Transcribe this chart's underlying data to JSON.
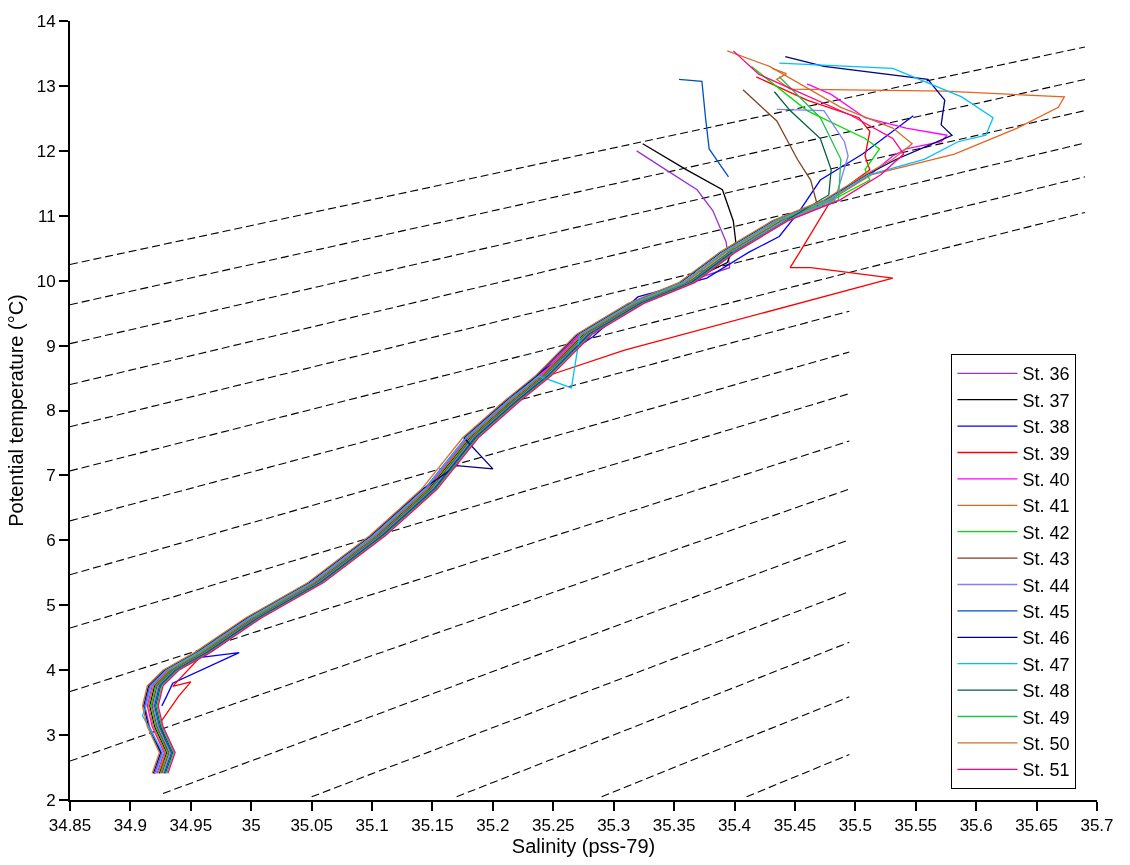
{
  "chart_data": {
    "type": "line",
    "xlabel": "Salinity (pss-79)",
    "ylabel": "Potential temperature (°C)",
    "xlim": [
      34.85,
      35.7
    ],
    "ylim": [
      2,
      14
    ],
    "xticks": [
      34.85,
      34.9,
      34.95,
      35,
      35.05,
      35.1,
      35.15,
      35.2,
      35.25,
      35.3,
      35.35,
      35.4,
      35.45,
      35.5,
      35.55,
      35.6,
      35.65,
      35.7
    ],
    "yticks": [
      2,
      3,
      4,
      5,
      6,
      7,
      8,
      9,
      10,
      11,
      12,
      13,
      14
    ],
    "legend": "bottom right",
    "line_style": "solid",
    "marker": "none",
    "series": [
      {
        "color": "#000000",
        "line_style": "dashed",
        "x": [
          34.85,
          35.69
        ],
        "values": [
          10.25,
          13.6
        ]
      },
      {
        "color": "#000000",
        "line_style": "dashed",
        "x": [
          34.85,
          35.69
        ],
        "values": [
          9.63,
          13.1
        ]
      },
      {
        "color": "#000000",
        "line_style": "dashed",
        "x": [
          34.85,
          35.69
        ],
        "values": [
          9.03,
          12.62
        ]
      },
      {
        "color": "#000000",
        "line_style": "dashed",
        "x": [
          34.85,
          35.69
        ],
        "values": [
          8.4,
          12.12
        ]
      },
      {
        "color": "#000000",
        "line_style": "dashed",
        "x": [
          34.85,
          35.69
        ],
        "values": [
          7.75,
          11.6
        ]
      },
      {
        "color": "#000000",
        "line_style": "dashed",
        "x": [
          34.85,
          35.69
        ],
        "values": [
          7.07,
          11.05
        ]
      },
      {
        "color": "#000000",
        "line_style": "dashed",
        "x": [
          34.85,
          35.495
        ],
        "values": [
          6.3,
          9.53
        ]
      },
      {
        "color": "#000000",
        "line_style": "dashed",
        "x": [
          34.85,
          35.495
        ],
        "values": [
          5.47,
          8.9
        ]
      },
      {
        "color": "#000000",
        "line_style": "dashed",
        "x": [
          34.85,
          35.495
        ],
        "values": [
          4.65,
          8.26
        ]
      },
      {
        "color": "#000000",
        "line_style": "dashed",
        "x": [
          34.85,
          35.495
        ],
        "values": [
          3.67,
          7.53
        ]
      },
      {
        "color": "#000000",
        "line_style": "dashed",
        "x": [
          34.85,
          35.495
        ],
        "values": [
          2.6,
          6.79
        ]
      },
      {
        "color": "#000000",
        "line_style": "dashed",
        "x": [
          34.927,
          35.495
        ],
        "values": [
          2.1,
          6.01
        ]
      },
      {
        "color": "#000000",
        "line_style": "dashed",
        "x": [
          35.05,
          35.495
        ],
        "values": [
          2.05,
          5.21
        ]
      },
      {
        "color": "#000000",
        "line_style": "dashed",
        "x": [
          35.17,
          35.495
        ],
        "values": [
          2.05,
          4.43
        ]
      },
      {
        "color": "#000000",
        "line_style": "dashed",
        "x": [
          35.29,
          35.495
        ],
        "values": [
          2.05,
          3.59
        ]
      },
      {
        "color": "#000000",
        "line_style": "dashed",
        "x": [
          35.41,
          35.495
        ],
        "values": [
          2.05,
          2.7
        ]
      },
      {
        "name": "St. 36",
        "color": "#9933cc",
        "x": [
          34.92,
          34.926,
          34.916,
          34.912,
          34.916,
          34.929,
          34.955,
          34.997,
          35.049,
          35.1,
          35.143,
          35.177,
          35.211,
          35.237,
          35.271,
          35.314,
          35.356,
          35.396,
          35.393,
          35.382,
          35.369,
          35.343,
          35.319
        ],
        "values": [
          2.4,
          2.72,
          3.12,
          3.44,
          3.75,
          3.99,
          4.26,
          4.79,
          5.34,
          6.06,
          6.78,
          7.57,
          8.13,
          8.52,
          9.16,
          9.64,
          9.96,
          10.2,
          10.6,
          11.08,
          11.4,
          11.71,
          12.0
        ]
      },
      {
        "name": "St. 37",
        "color": "#000000",
        "x": [
          34.924,
          34.93,
          34.92,
          34.916,
          34.92,
          34.933,
          34.959,
          35.001,
          35.053,
          35.104,
          35.147,
          35.181,
          35.215,
          35.241,
          35.275,
          35.318,
          35.36,
          35.394,
          35.401,
          35.399,
          35.39,
          35.36,
          35.324
        ],
        "values": [
          2.41,
          2.73,
          3.13,
          3.45,
          3.76,
          4.0,
          4.27,
          4.8,
          5.35,
          6.07,
          6.79,
          7.58,
          8.14,
          8.53,
          9.17,
          9.65,
          9.97,
          10.28,
          10.6,
          10.92,
          11.4,
          11.71,
          12.11
        ]
      },
      {
        "name": "St. 38",
        "color": "#0000ff",
        "x": [
          34.926,
          34.93,
          34.935,
          34.99,
          34.96,
          35.0,
          35.052,
          35.103,
          35.146,
          35.18,
          35.214,
          35.24,
          35.283,
          35.32,
          35.377,
          35.412,
          35.437,
          35.454,
          35.471,
          35.506,
          35.548
        ],
        "values": [
          3.45,
          3.6,
          3.8,
          4.27,
          4.2,
          4.78,
          5.34,
          6.06,
          6.8,
          7.6,
          8.16,
          8.6,
          9.14,
          9.75,
          10.04,
          10.44,
          10.68,
          11.08,
          11.55,
          11.95,
          12.54
        ]
      },
      {
        "name": "St. 39",
        "color": "#ff0000",
        "x": [
          34.925,
          34.93,
          34.925,
          34.94,
          34.95,
          34.935,
          34.96,
          35.003,
          35.055,
          35.106,
          35.15,
          35.183,
          35.217,
          35.243,
          35.309,
          35.531,
          35.463,
          35.446,
          35.454,
          35.48,
          35.497,
          35.512,
          35.508,
          35.512,
          35.503,
          35.46,
          35.418
        ],
        "values": [
          2.42,
          2.8,
          3.2,
          3.6,
          3.82,
          3.75,
          4.25,
          4.78,
          5.33,
          6.05,
          6.75,
          7.55,
          8.12,
          8.52,
          8.93,
          10.04,
          10.2,
          10.2,
          10.44,
          11.24,
          11.51,
          11.71,
          11.92,
          12.3,
          12.51,
          12.78,
          13.14
        ]
      },
      {
        "name": "St. 40",
        "color": "#ff00ff",
        "x": [
          34.922,
          34.928,
          34.918,
          34.914,
          34.918,
          34.931,
          34.957,
          34.999,
          35.051,
          35.102,
          35.145,
          35.179,
          35.213,
          35.239,
          35.273,
          35.316,
          35.358,
          35.392,
          35.435,
          35.478,
          35.512,
          35.531,
          35.542,
          35.571,
          35.576,
          35.542,
          35.508,
          35.48,
          35.46
        ],
        "values": [
          2.41,
          2.73,
          3.13,
          3.45,
          3.76,
          4.0,
          4.27,
          4.8,
          5.35,
          6.07,
          6.79,
          7.58,
          8.14,
          8.53,
          9.17,
          9.65,
          9.97,
          10.44,
          10.92,
          11.24,
          11.63,
          11.92,
          12.03,
          12.14,
          12.24,
          12.35,
          12.51,
          12.87,
          13.03
        ]
      },
      {
        "name": "St. 41",
        "color": "#e8641e",
        "x": [
          34.923,
          34.929,
          34.919,
          34.915,
          34.919,
          34.932,
          34.958,
          35,
          35.052,
          35.103,
          35.146,
          35.18,
          35.214,
          35.24,
          35.274,
          35.317,
          35.359,
          35.393,
          35.436,
          35.479,
          35.513,
          35.582,
          35.634,
          35.668,
          35.673,
          35.574,
          35.446,
          35.435,
          35.443,
          35.431
        ],
        "values": [
          2.41,
          2.73,
          3.13,
          3.45,
          3.76,
          4.0,
          4.27,
          4.8,
          5.35,
          6.07,
          6.79,
          7.58,
          8.14,
          8.53,
          9.17,
          9.65,
          9.97,
          10.44,
          10.92,
          11.24,
          11.63,
          11.95,
          12.35,
          12.67,
          12.83,
          12.92,
          12.95,
          13.1,
          13.19,
          13.27
        ]
      },
      {
        "name": "St. 42",
        "color": "#00e000",
        "x": [
          34.925,
          34.931,
          34.921,
          34.917,
          34.921,
          34.934,
          34.96,
          35.002,
          35.054,
          35.105,
          35.148,
          35.182,
          35.216,
          35.242,
          35.276,
          35.319,
          35.361,
          35.395,
          35.438,
          35.481,
          35.512,
          35.508,
          35.52,
          35.508,
          35.46,
          35.414
        ],
        "values": [
          2.41,
          2.73,
          3.13,
          3.45,
          3.76,
          4.0,
          4.27,
          4.8,
          5.35,
          6.07,
          6.79,
          7.58,
          8.14,
          8.53,
          9.17,
          9.65,
          9.97,
          10.44,
          10.92,
          11.24,
          11.55,
          11.71,
          12.03,
          12.19,
          12.62,
          13.3
        ]
      },
      {
        "name": "St. 43",
        "color": "#804020",
        "x": [
          34.926,
          34.932,
          34.922,
          34.918,
          34.922,
          34.935,
          34.961,
          35.003,
          35.055,
          35.106,
          35.149,
          35.183,
          35.217,
          35.243,
          35.277,
          35.32,
          35.362,
          35.396,
          35.439,
          35.469,
          35.463,
          35.452,
          35.435,
          35.407
        ],
        "values": [
          2.41,
          2.73,
          3.13,
          3.45,
          3.76,
          4.0,
          4.27,
          4.8,
          5.35,
          6.07,
          6.79,
          7.58,
          8.14,
          8.53,
          9.17,
          9.65,
          9.97,
          10.44,
          10.92,
          11.13,
          11.55,
          11.87,
          12.46,
          12.94
        ]
      },
      {
        "name": "St. 44",
        "color": "#8080ff",
        "x": [
          34.927,
          34.933,
          34.923,
          34.919,
          34.923,
          34.936,
          34.962,
          35.004,
          35.056,
          35.107,
          35.15,
          35.184,
          35.218,
          35.244,
          35.278,
          35.321,
          35.363,
          35.397,
          35.44,
          35.483,
          35.494,
          35.491,
          35.474,
          35.435
        ],
        "values": [
          2.41,
          2.73,
          3.13,
          3.45,
          3.76,
          4.0,
          4.27,
          4.8,
          5.35,
          6.07,
          6.79,
          7.58,
          8.14,
          8.53,
          9.17,
          9.65,
          9.97,
          10.44,
          10.92,
          11.24,
          11.92,
          12.14,
          12.62,
          12.64
        ]
      },
      {
        "name": "St. 45",
        "color": "#0050c0",
        "x": [
          34.928,
          34.934,
          34.924,
          34.92,
          34.924,
          34.937,
          34.963,
          35.005,
          35.057,
          35.108,
          35.151,
          35.185,
          35.219,
          35.245,
          35.279,
          35.322,
          35.364,
          35.398,
          null,
          35.395,
          35.379,
          35.376,
          35.373,
          35.354
        ],
        "values": [
          2.41,
          2.73,
          3.13,
          3.45,
          3.76,
          4.0,
          4.27,
          4.8,
          5.35,
          6.07,
          6.79,
          7.58,
          8.14,
          8.53,
          9.17,
          9.65,
          9.97,
          10.44,
          null,
          11.6,
          12.03,
          12.51,
          13.07,
          13.1
        ]
      },
      {
        "name": "St. 46",
        "color": "#000080",
        "x": [
          34.919,
          34.925,
          34.915,
          34.911,
          34.915,
          34.928,
          34.954,
          34.996,
          35.048,
          35.099,
          35.142,
          35.17,
          35.2,
          35.176,
          35.21,
          35.236,
          35.27,
          35.313,
          35.355,
          35.389,
          35.432,
          35.475,
          35.509,
          35.534,
          35.554,
          35.58,
          35.571,
          35.574,
          35.56,
          35.474,
          35.442
        ],
        "values": [
          2.41,
          2.73,
          3.13,
          3.45,
          3.76,
          4.0,
          4.27,
          4.8,
          5.35,
          6.07,
          6.79,
          7.15,
          7.1,
          7.58,
          8.14,
          8.53,
          9.17,
          9.65,
          9.97,
          10.44,
          10.92,
          11.24,
          11.63,
          11.87,
          12.03,
          12.24,
          12.4,
          12.78,
          13.1,
          13.3,
          13.45
        ]
      },
      {
        "name": "St. 47",
        "color": "#00c0ff",
        "x": [
          34.921,
          34.927,
          34.91,
          34.913,
          34.917,
          34.93,
          34.956,
          34.998,
          35.05,
          35.101,
          35.144,
          35.178,
          35.212,
          35.238,
          35.265,
          35.272,
          35.315,
          35.357,
          35.391,
          35.434,
          35.477,
          35.511,
          35.557,
          35.585,
          35.608,
          35.614,
          35.588,
          35.531,
          35.437
        ],
        "values": [
          2.41,
          2.73,
          3.3,
          3.45,
          3.76,
          4.0,
          4.27,
          4.8,
          5.35,
          6.07,
          6.79,
          7.58,
          8.14,
          8.53,
          8.35,
          9.17,
          9.65,
          9.97,
          10.44,
          10.92,
          11.24,
          11.63,
          11.87,
          12.14,
          12.24,
          12.51,
          12.83,
          13.27,
          13.35
        ]
      },
      {
        "name": "St. 48",
        "color": "#006040",
        "x": [
          34.929,
          34.935,
          34.925,
          34.921,
          34.925,
          34.938,
          34.964,
          35.006,
          35.058,
          35.109,
          35.152,
          35.186,
          35.22,
          35.246,
          35.28,
          35.323,
          35.365,
          35.399,
          35.442,
          35.478,
          35.48,
          35.471,
          35.446,
          35.433
        ],
        "values": [
          2.41,
          2.73,
          3.13,
          3.45,
          3.76,
          4.0,
          4.27,
          4.8,
          5.35,
          6.07,
          6.79,
          7.58,
          8.14,
          8.53,
          9.17,
          9.65,
          9.97,
          10.44,
          10.92,
          11.32,
          11.71,
          12.19,
          12.62,
          12.91
        ]
      },
      {
        "name": "St. 49",
        "color": "#20c050",
        "x": [
          34.93,
          34.936,
          34.926,
          34.922,
          34.926,
          34.939,
          34.965,
          35.007,
          35.059,
          35.11,
          35.153,
          35.187,
          35.221,
          35.247,
          35.281,
          35.324,
          35.366,
          35.4,
          35.443,
          35.486,
          35.488,
          35.471,
          35.437
        ],
        "values": [
          2.41,
          2.73,
          3.13,
          3.45,
          3.76,
          4.0,
          4.27,
          4.8,
          5.35,
          6.07,
          6.79,
          7.58,
          8.14,
          8.53,
          9.17,
          9.65,
          9.97,
          10.44,
          10.92,
          11.24,
          11.87,
          12.51,
          13.14
        ]
      },
      {
        "name": "St. 50",
        "color": "#d0702a",
        "x": [
          34.918,
          34.924,
          34.914,
          34.91,
          34.914,
          34.927,
          34.953,
          34.995,
          35.047,
          35.098,
          35.141,
          35.175,
          35.209,
          35.235,
          35.269,
          35.312,
          35.354,
          35.388,
          35.431,
          35.474,
          35.508,
          35.531,
          35.547,
          35.531,
          35.488,
          35.429,
          35.394
        ],
        "values": [
          2.41,
          2.73,
          3.13,
          3.45,
          3.76,
          4.0,
          4.27,
          4.8,
          5.35,
          6.07,
          6.79,
          7.58,
          8.14,
          8.53,
          9.17,
          9.65,
          9.97,
          10.44,
          10.92,
          11.24,
          11.63,
          11.87,
          12.11,
          12.35,
          12.67,
          13.3,
          13.54
        ]
      },
      {
        "name": "St. 51",
        "color": "#ff0080",
        "x": [
          34.931,
          34.937,
          34.927,
          34.923,
          34.927,
          34.94,
          34.966,
          35.008,
          35.06,
          35.111,
          35.154,
          35.188,
          35.222,
          35.248,
          35.282,
          35.325,
          35.367,
          35.401,
          35.444,
          35.487,
          35.521,
          35.54,
          35.531,
          35.497,
          35.42,
          35.399
        ],
        "values": [
          2.41,
          2.73,
          3.13,
          3.45,
          3.76,
          4.0,
          4.27,
          4.8,
          5.35,
          6.07,
          6.79,
          7.58,
          8.14,
          8.53,
          9.17,
          9.65,
          9.97,
          10.44,
          10.92,
          11.24,
          11.63,
          11.95,
          12.19,
          12.54,
          13.18,
          13.54
        ]
      }
    ]
  }
}
